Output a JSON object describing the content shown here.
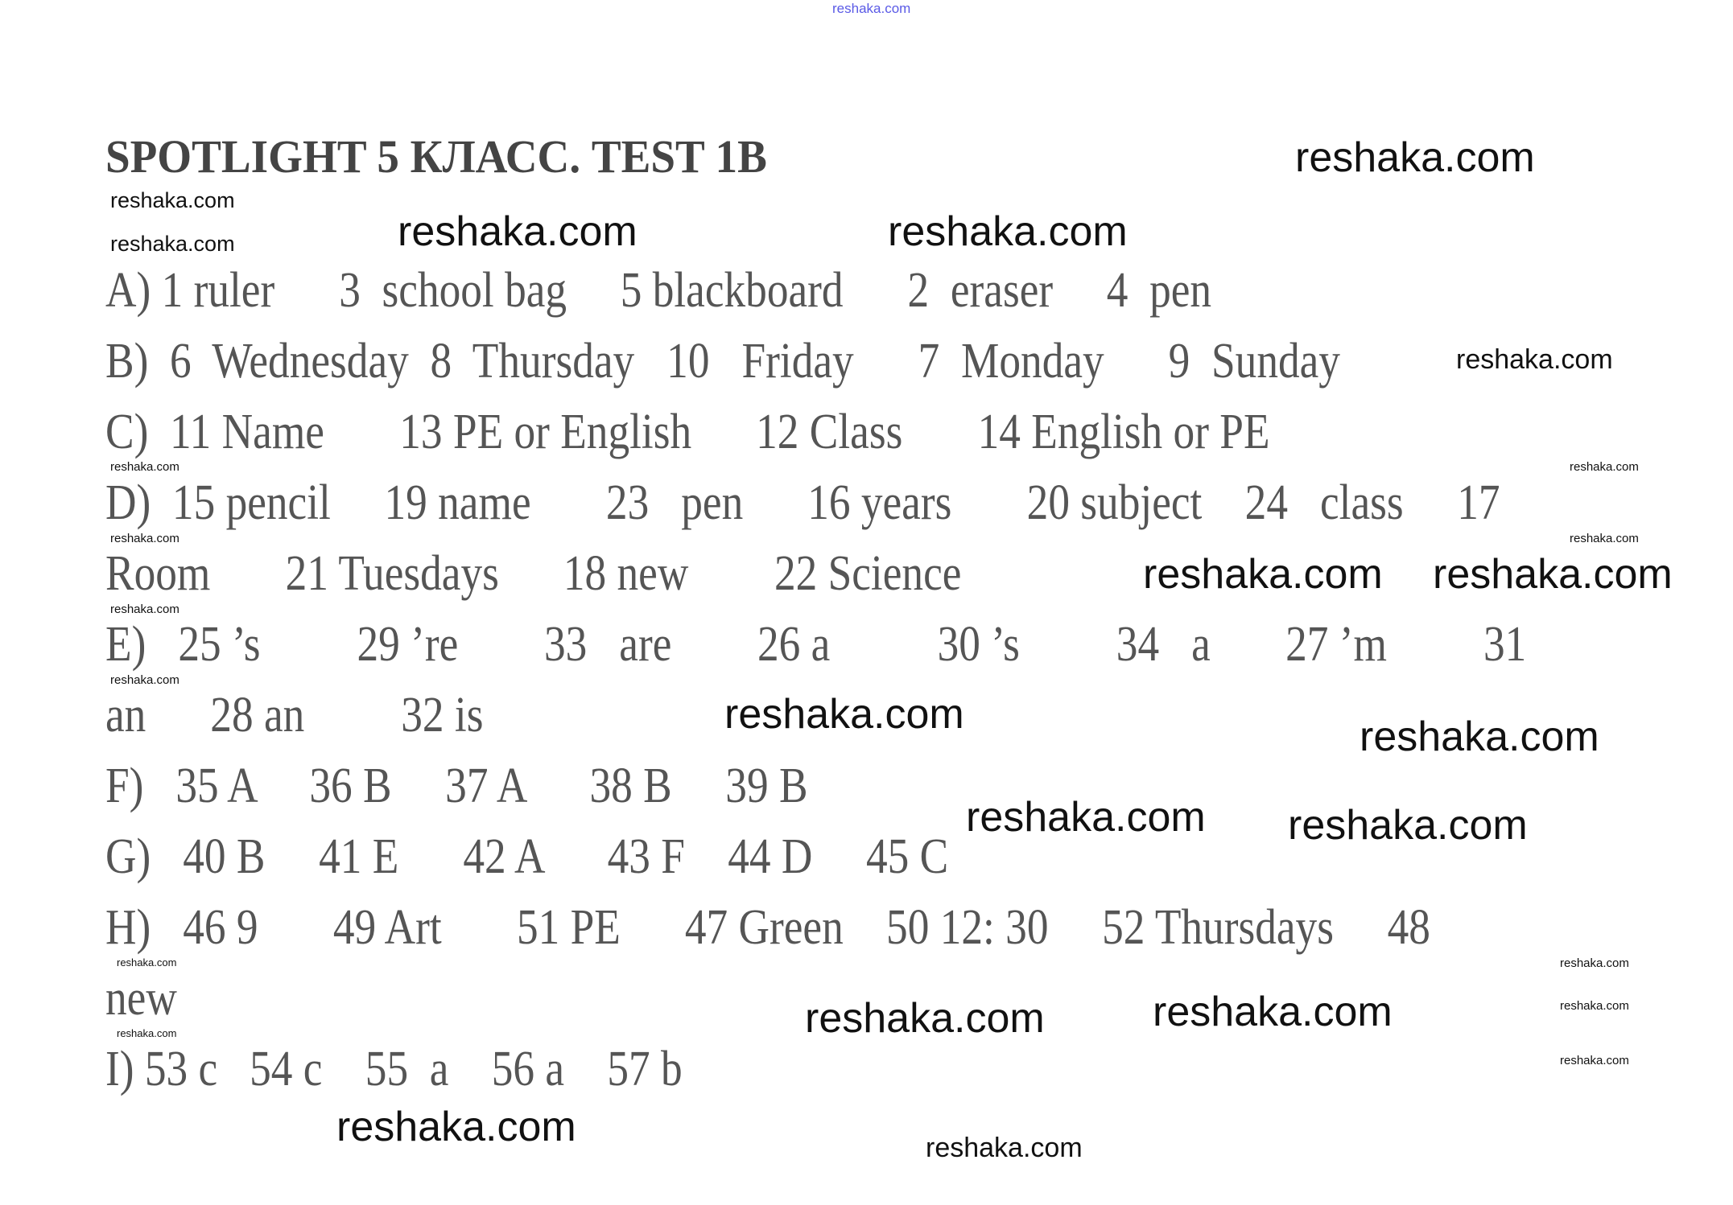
{
  "watermark": "reshaka.com",
  "title": "SPOTLIGHT 5 КЛАСС. TEST 1B",
  "answers": {
    "A": "A) 1 ruler      3  school bag     5 blackboard      2  eraser     4  pen",
    "B": "B)  6  Wednesday  8  Thursday   10   Friday      7  Monday      9  Sunday",
    "C": "C)  11 Name       13 PE or English      12 Class       14 English or PE",
    "D": "D)  15 pencil     19 name       23   pen      16 years       20 subject    24   class     17",
    "D_cont": "Room       21 Tuesdays      18 new        22 Science",
    "E": "E)   25 ’s         29 ’re        33   are        26 a          30 ’s         34   a       27 ’m         31",
    "E_cont": "an      28 an         32 is",
    "F": "F)   35 A     36 B     37 A      38 B     39 B",
    "G": "G)   40 B     41 E      42 A      43 F    44 D     45 C",
    "H": "H)   46 9       49 Art       51 PE      47 Green    50 12: 30     52 Thursdays     48",
    "H_cont": "new",
    "I": "I) 53 c   54 c    55  a    56 a    57 b"
  }
}
